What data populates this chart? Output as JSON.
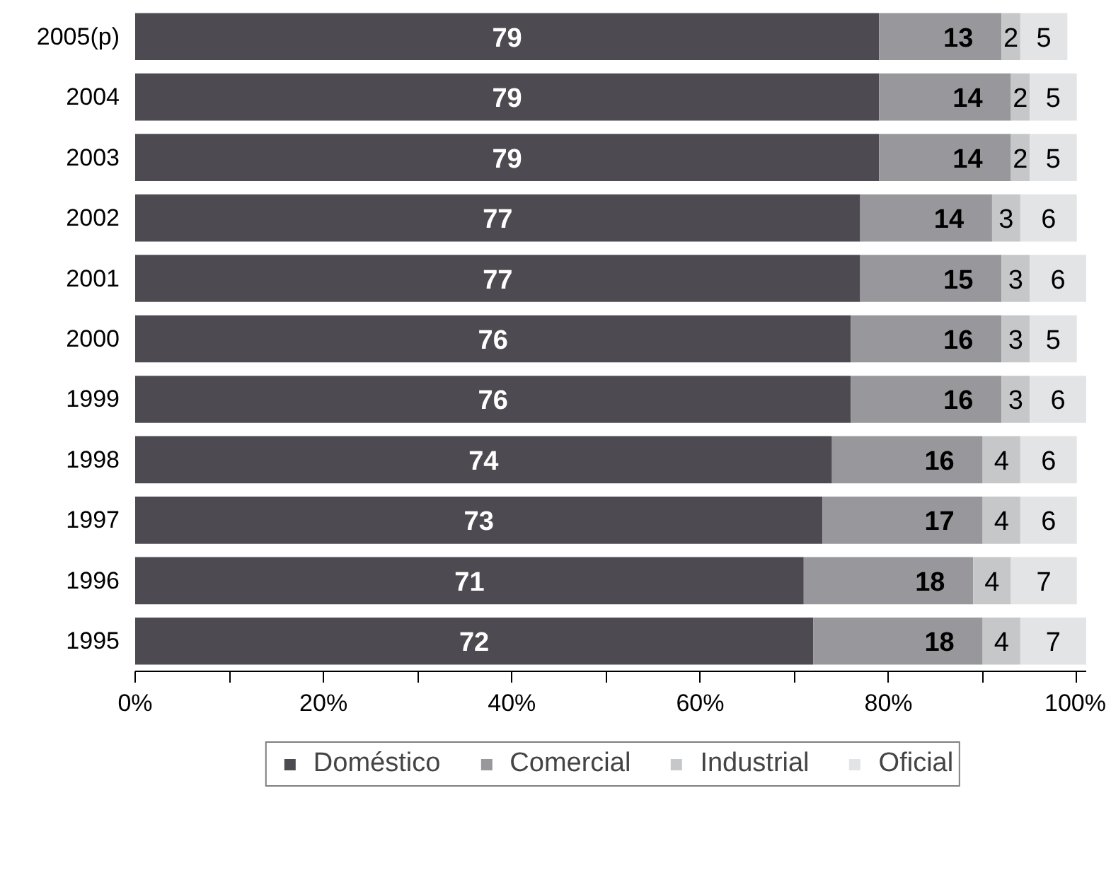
{
  "chart_data": {
    "type": "bar",
    "orientation": "horizontal",
    "stacked": true,
    "categories": [
      "2005(p)",
      "2004",
      "2003",
      "2002",
      "2001",
      "2000",
      "1999",
      "1998",
      "1997",
      "1996",
      "1995"
    ],
    "series": [
      {
        "name": "Doméstico",
        "color": "#4d4b51",
        "values": [
          79,
          79,
          79,
          77,
          77,
          76,
          76,
          74,
          73,
          71,
          72
        ]
      },
      {
        "name": "Comercial",
        "color": "#98979b",
        "values": [
          13,
          14,
          14,
          14,
          15,
          16,
          16,
          16,
          17,
          18,
          18
        ]
      },
      {
        "name": "Industrial",
        "color": "#c5c7c9",
        "values": [
          2,
          2,
          2,
          3,
          3,
          3,
          3,
          4,
          4,
          4,
          4
        ]
      },
      {
        "name": "Oficial",
        "color": "#e3e4e6",
        "values": [
          5,
          5,
          5,
          6,
          6,
          5,
          6,
          6,
          6,
          7,
          7
        ]
      }
    ],
    "data_labels": true,
    "xlim": [
      0,
      101
    ],
    "xticks": [
      {
        "value": 0,
        "label": "0%"
      },
      {
        "value": 10,
        "label": null
      },
      {
        "value": 20,
        "label": "20%"
      },
      {
        "value": 30,
        "label": null
      },
      {
        "value": 40,
        "label": "40%"
      },
      {
        "value": 50,
        "label": null
      },
      {
        "value": 60,
        "label": "60%"
      },
      {
        "value": 70,
        "label": null
      },
      {
        "value": 80,
        "label": "80%"
      },
      {
        "value": 90,
        "label": null
      },
      {
        "value": 100,
        "label": "100%"
      }
    ],
    "grid": false,
    "legend": "bottom"
  }
}
